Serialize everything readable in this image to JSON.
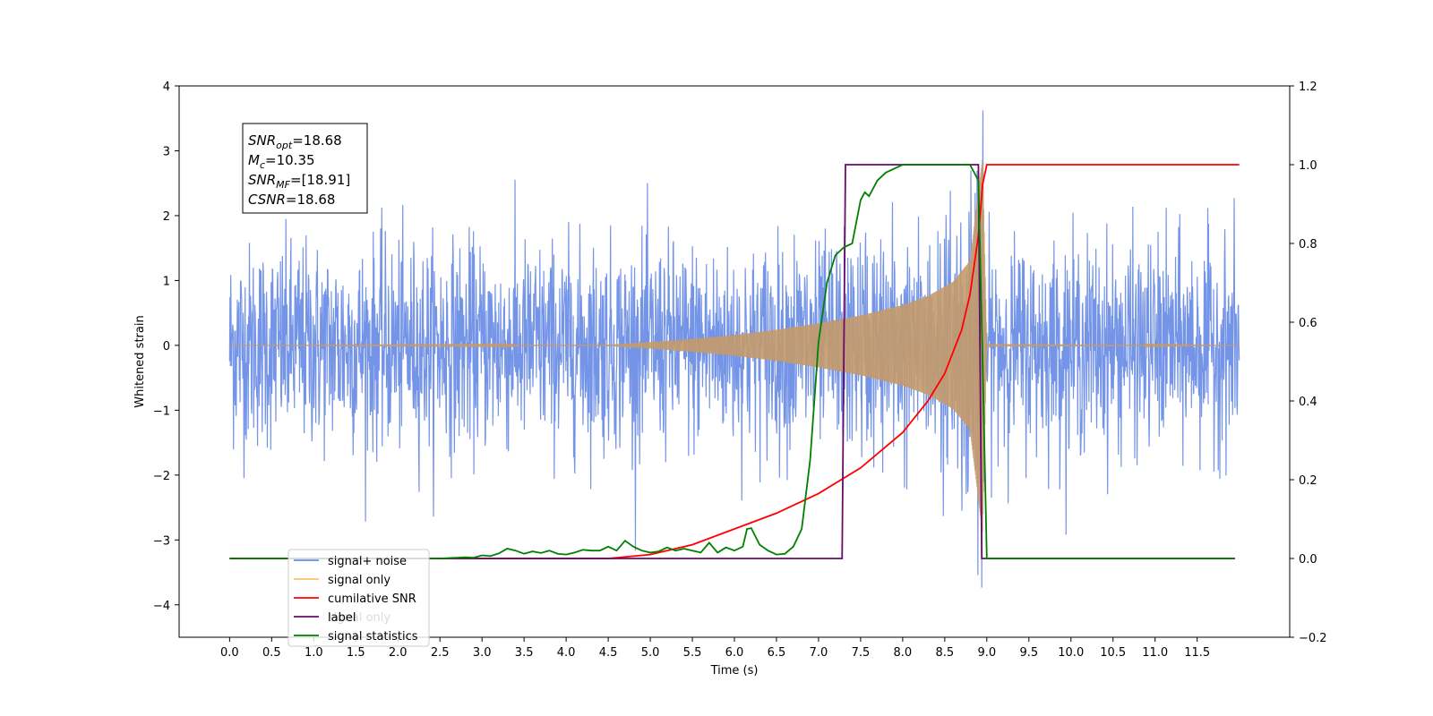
{
  "chart_data": {
    "type": "line",
    "title": "",
    "xlabel": "Time (s)",
    "ylabel": "Whitened strain",
    "y2label": "",
    "xlim": [
      -0.6,
      12.6
    ],
    "ylim": [
      -4.5,
      4.0
    ],
    "y2lim": [
      -0.2,
      1.2
    ],
    "x_ticks": [
      0.0,
      0.5,
      1.0,
      1.5,
      2.0,
      2.5,
      3.0,
      3.5,
      4.0,
      4.5,
      5.0,
      5.5,
      6.0,
      6.5,
      7.0,
      7.5,
      8.0,
      8.5,
      9.0,
      9.5,
      10.0,
      10.5,
      11.0,
      11.5
    ],
    "x_tick_labels": [
      "0.0",
      "0.5",
      "1.0",
      "1.5",
      "2.0",
      "2.5",
      "3.0",
      "3.5",
      "4.0",
      "4.5",
      "5.0",
      "5.5",
      "6.0",
      "6.5",
      "7.0",
      "7.5",
      "8.0",
      "8.5",
      "9.0",
      "9.5",
      "10.0",
      "10.5",
      "11.0",
      "11.5"
    ],
    "y_ticks": [
      -4,
      -3,
      -2,
      -1,
      0,
      1,
      2,
      3,
      4
    ],
    "y_tick_labels": [
      "−4",
      "−3",
      "−2",
      "−1",
      "0",
      "1",
      "2",
      "3",
      "4"
    ],
    "y2_ticks": [
      -0.2,
      0.0,
      0.2,
      0.4,
      0.6,
      0.8,
      1.0,
      1.2
    ],
    "y2_tick_labels": [
      "−0.2",
      "0.0",
      "0.2",
      "0.4",
      "0.6",
      "0.8",
      "1.0",
      "1.2"
    ],
    "grid": false,
    "legend_position": "bottom-left",
    "legend": [
      {
        "label": "signal+ noise",
        "color": "#6d8ee6"
      },
      {
        "label": "signal only",
        "color": "#f7c26b"
      },
      {
        "label": "cumilative SNR",
        "color": "#ff0000"
      },
      {
        "label": "label",
        "color": "#6a0a6a"
      },
      {
        "label": "signal statistics",
        "color": "#008000"
      }
    ],
    "occluded_legend_text": "signal only",
    "annotation_box": {
      "lines": [
        {
          "name": "SNR",
          "sub": "opt",
          "value": "=18.68"
        },
        {
          "name": "M",
          "sub": "c",
          "value": "=10.35"
        },
        {
          "name": "SNR",
          "sub": "MF",
          "value": "=[18.91]"
        },
        {
          "name": "CSNR",
          "sub": "",
          "value": "=18.68"
        }
      ]
    },
    "series": [
      {
        "name": "signal+ noise",
        "axis": "left",
        "color": "#6d8ee6",
        "x_range": [
          0.0,
          12.0
        ],
        "description_values": {
          "typical_upper": 2.3,
          "typical_lower": -2.3,
          "max": 3.62,
          "min": -4.1
        }
      },
      {
        "name": "signal only",
        "axis": "left",
        "color": "#c49a6c",
        "x_range": [
          0.0,
          12.0
        ],
        "envelope": {
          "x": [
            0.0,
            4.5,
            5.0,
            5.5,
            6.0,
            6.5,
            7.0,
            7.5,
            8.0,
            8.3,
            8.6,
            8.8,
            8.95,
            9.0,
            12.0
          ],
          "amp": [
            0.0,
            0.01,
            0.05,
            0.1,
            0.16,
            0.24,
            0.34,
            0.46,
            0.62,
            0.76,
            0.98,
            1.3,
            2.9,
            0.02,
            0.0
          ]
        }
      },
      {
        "name": "cumilative SNR",
        "axis": "right",
        "color": "#ff0000",
        "x": [
          0.0,
          4.5,
          5.0,
          5.5,
          6.0,
          6.5,
          7.0,
          7.5,
          8.0,
          8.3,
          8.5,
          8.7,
          8.8,
          8.9,
          8.95,
          9.0,
          12.0
        ],
        "y": [
          0.0,
          0.0,
          0.01,
          0.035,
          0.075,
          0.115,
          0.165,
          0.23,
          0.32,
          0.4,
          0.47,
          0.58,
          0.67,
          0.82,
          0.95,
          1.0,
          1.0
        ]
      },
      {
        "name": "label",
        "axis": "right",
        "color": "#6a0a6a",
        "x": [
          0.0,
          7.28,
          7.32,
          8.9,
          8.94,
          11.95
        ],
        "y": [
          0.0,
          0.0,
          1.0,
          1.0,
          0.0,
          0.0
        ]
      },
      {
        "name": "signal statistics",
        "axis": "right",
        "color": "#008000",
        "x": [
          0.0,
          2.5,
          2.8,
          2.9,
          3.0,
          3.1,
          3.2,
          3.3,
          3.4,
          3.5,
          3.6,
          3.7,
          3.8,
          3.9,
          4.0,
          4.1,
          4.2,
          4.3,
          4.4,
          4.5,
          4.6,
          4.7,
          4.8,
          4.9,
          5.0,
          5.1,
          5.2,
          5.3,
          5.4,
          5.5,
          5.6,
          5.7,
          5.8,
          5.9,
          6.0,
          6.1,
          6.15,
          6.2,
          6.3,
          6.4,
          6.5,
          6.6,
          6.7,
          6.8,
          6.9,
          7.0,
          7.1,
          7.2,
          7.3,
          7.4,
          7.5,
          7.55,
          7.6,
          7.7,
          7.8,
          7.9,
          8.0,
          8.5,
          8.8,
          8.9,
          8.95,
          9.0,
          11.95
        ],
        "y": [
          0.0,
          0.0,
          0.003,
          0.002,
          0.008,
          0.006,
          0.013,
          0.025,
          0.02,
          0.012,
          0.018,
          0.014,
          0.02,
          0.012,
          0.01,
          0.015,
          0.022,
          0.02,
          0.02,
          0.03,
          0.02,
          0.045,
          0.03,
          0.02,
          0.015,
          0.018,
          0.028,
          0.02,
          0.025,
          0.02,
          0.015,
          0.04,
          0.015,
          0.028,
          0.02,
          0.03,
          0.075,
          0.077,
          0.035,
          0.02,
          0.01,
          0.012,
          0.03,
          0.075,
          0.25,
          0.55,
          0.7,
          0.77,
          0.79,
          0.8,
          0.91,
          0.93,
          0.92,
          0.96,
          0.98,
          0.99,
          1.0,
          1.0,
          1.0,
          0.96,
          0.5,
          0.0,
          0.0
        ]
      }
    ]
  }
}
